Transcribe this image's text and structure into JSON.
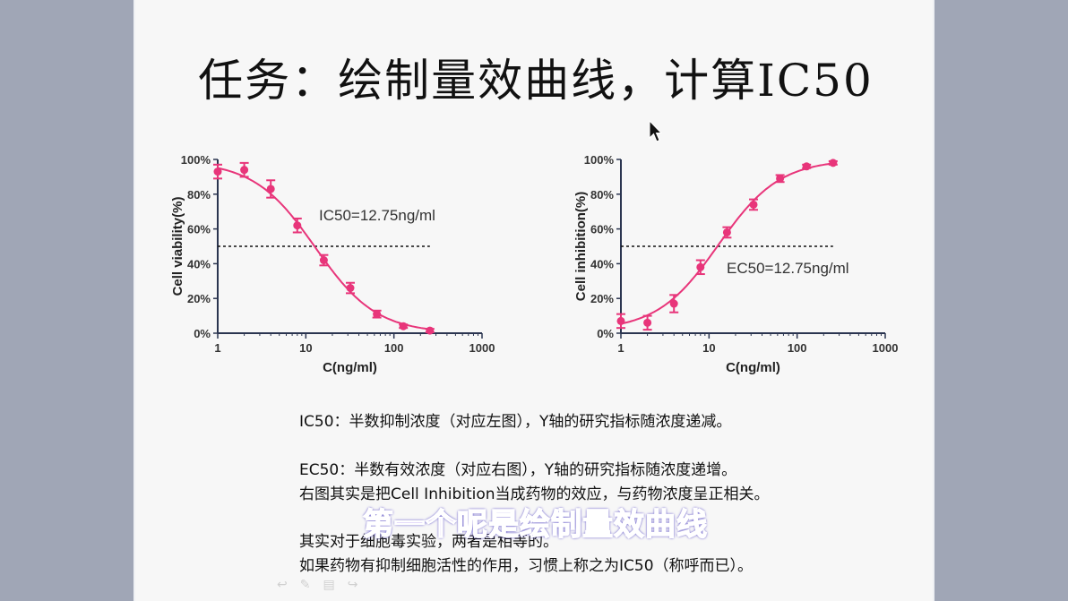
{
  "slide": {
    "title": "任务：绘制量效曲线，计算IC50",
    "paragraphs": [
      "IC50：半数抑制浓度（对应左图），Y轴的研究指标随浓度递减。",
      "EC50：半数有效浓度（对应右图），Y轴的研究指标随浓度递增。",
      "右图其实是把Cell Inhibition当成药物的效应，与药物浓度呈正相关。",
      "其实对于细胞毒实验，两者是相等的。",
      "如果药物有抑制细胞活性的作用，习惯上称之为IC50（称呼而已）。"
    ],
    "subtitle_overlay": "第一个呢是绘制量效曲线",
    "toolbar_icons": [
      "undo-arrow-icon",
      "pen-icon",
      "menu-icon",
      "redo-arrow-icon"
    ],
    "accent_color": "#e8357a",
    "background_color": "#a0a6b6"
  },
  "chart_data": [
    {
      "type": "scatter",
      "title": "",
      "xlabel": "C(ng/ml)",
      "ylabel": "Cell viability(%)",
      "xscale": "log",
      "xlim": [
        1,
        1000
      ],
      "ylim": [
        0,
        100
      ],
      "x_ticks": [
        "1",
        "10",
        "100",
        "1000"
      ],
      "y_ticks": [
        "0%",
        "20%",
        "40%",
        "60%",
        "80%",
        "100%"
      ],
      "annotation": "IC50=12.75ng/ml",
      "reference_line": {
        "y": 50,
        "style": "dotted",
        "x_range": [
          1,
          256
        ]
      },
      "series": [
        {
          "name": "Cell viability",
          "color": "#e8357a",
          "x": [
            1,
            2,
            4,
            8,
            16,
            32,
            64,
            128,
            256
          ],
          "values": [
            93,
            94,
            83,
            62,
            42,
            26,
            11,
            4,
            1.5
          ],
          "error": [
            4,
            4,
            5,
            4,
            3,
            3,
            2,
            1,
            1
          ],
          "fit": "4PL sigmoid, decreasing"
        }
      ],
      "grid": false
    },
    {
      "type": "scatter",
      "title": "",
      "xlabel": "C(ng/ml)",
      "ylabel": "Cell inhibition(%)",
      "xscale": "log",
      "xlim": [
        1,
        1000
      ],
      "ylim": [
        0,
        100
      ],
      "x_ticks": [
        "1",
        "10",
        "100",
        "1000"
      ],
      "y_ticks": [
        "0%",
        "20%",
        "40%",
        "60%",
        "80%",
        "100%"
      ],
      "annotation": "EC50=12.75ng/ml",
      "reference_line": {
        "y": 50,
        "style": "dotted",
        "x_range": [
          1,
          256
        ]
      },
      "series": [
        {
          "name": "Cell inhibition",
          "color": "#e8357a",
          "x": [
            1,
            2,
            4,
            8,
            16,
            32,
            64,
            128,
            256
          ],
          "values": [
            7,
            6,
            17,
            38,
            58,
            74,
            89,
            96,
            98
          ],
          "error": [
            4,
            4,
            5,
            4,
            3,
            3,
            2,
            1,
            1
          ],
          "fit": "4PL sigmoid, increasing"
        }
      ],
      "grid": false
    }
  ]
}
